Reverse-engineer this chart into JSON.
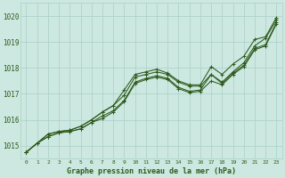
{
  "title": "Graphe pression niveau de la mer (hPa)",
  "bg_color": "#cce8e0",
  "grid_color": "#aacfc8",
  "line_color": "#2d5a1b",
  "text_color": "#2d5a1b",
  "xlim": [
    -0.5,
    23.5
  ],
  "ylim": [
    1014.5,
    1020.5
  ],
  "yticks": [
    1015,
    1016,
    1017,
    1018,
    1019,
    1020
  ],
  "xticks": [
    0,
    1,
    2,
    3,
    4,
    5,
    6,
    7,
    8,
    9,
    10,
    11,
    12,
    13,
    14,
    15,
    16,
    17,
    18,
    19,
    20,
    21,
    22,
    23
  ],
  "series": [
    [
      1014.75,
      1015.1,
      1015.45,
      1015.55,
      1015.6,
      1015.75,
      1016.0,
      1016.3,
      1016.55,
      1016.95,
      1017.75,
      1017.85,
      1017.95,
      1017.8,
      1017.5,
      1017.35,
      1017.35,
      1018.05,
      1017.75,
      1018.15,
      1018.45,
      1019.1,
      1019.2,
      1019.95
    ],
    [
      1014.75,
      1015.1,
      1015.45,
      1015.55,
      1015.6,
      1015.75,
      1016.0,
      1016.3,
      1016.55,
      1016.95,
      1017.75,
      1017.85,
      1017.95,
      1017.8,
      1017.5,
      1017.35,
      1017.35,
      1017.75,
      1017.45,
      1017.85,
      1018.2,
      1018.85,
      1019.15,
      1019.85
    ],
    [
      1014.75,
      1015.1,
      1015.35,
      1015.5,
      1015.55,
      1015.65,
      1015.9,
      1016.15,
      1016.35,
      1016.75,
      1017.45,
      1017.6,
      1017.7,
      1017.6,
      1017.25,
      1017.1,
      1017.15,
      1017.75,
      1017.4,
      1017.8,
      1018.1,
      1018.75,
      1018.9,
      1019.75
    ],
    [
      1014.75,
      1015.1,
      1015.35,
      1015.5,
      1015.55,
      1015.65,
      1015.9,
      1016.05,
      1016.3,
      1016.7,
      1017.4,
      1017.55,
      1017.65,
      1017.55,
      1017.2,
      1017.05,
      1017.1,
      1017.5,
      1017.35,
      1017.75,
      1018.05,
      1018.7,
      1018.85,
      1019.7
    ]
  ],
  "series_upper": [
    1014.75,
    1015.1,
    1015.45,
    1015.55,
    1015.6,
    1015.75,
    1016.0,
    1016.3,
    1016.9,
    1017.2,
    1017.75,
    1017.85,
    1017.95,
    1017.8,
    1017.5,
    1017.35,
    1018.05,
    1018.25,
    1017.75,
    1018.45,
    1018.45,
    1019.1,
    1019.2,
    1019.95
  ],
  "figsize": [
    3.2,
    2.0
  ],
  "dpi": 100
}
